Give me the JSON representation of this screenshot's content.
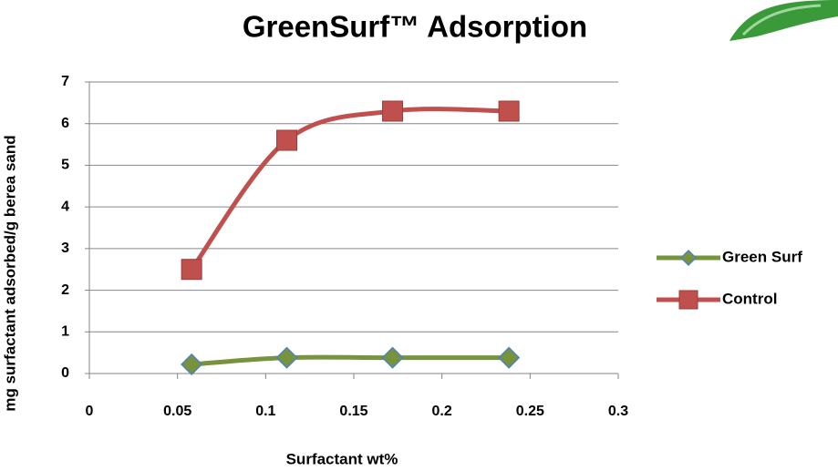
{
  "chart_data": {
    "type": "line",
    "title": "GreenSurf™ Adsorption",
    "x_label": "Surfactant wt%",
    "y_label": "mg surfactant adsorbed/g berea sand",
    "xlim": [
      0,
      0.3
    ],
    "xticks": [
      0,
      0.05,
      0.1,
      0.15,
      0.2,
      0.25,
      0.3
    ],
    "ylim": [
      0,
      7
    ],
    "yticks": [
      0,
      1,
      2,
      3,
      4,
      5,
      6,
      7
    ],
    "grid": true,
    "legend": "right",
    "series": [
      {
        "name": "Green Surf",
        "color": "#77933c",
        "marker": "diamond",
        "x": [
          0.058,
          0.112,
          0.172,
          0.238
        ],
        "values": [
          0.22,
          0.38,
          0.38,
          0.38
        ]
      },
      {
        "name": "Control",
        "color": "#c0504d",
        "marker": "square",
        "x": [
          0.058,
          0.112,
          0.172,
          0.238
        ],
        "values": [
          2.5,
          5.6,
          6.3,
          6.3
        ]
      }
    ]
  }
}
